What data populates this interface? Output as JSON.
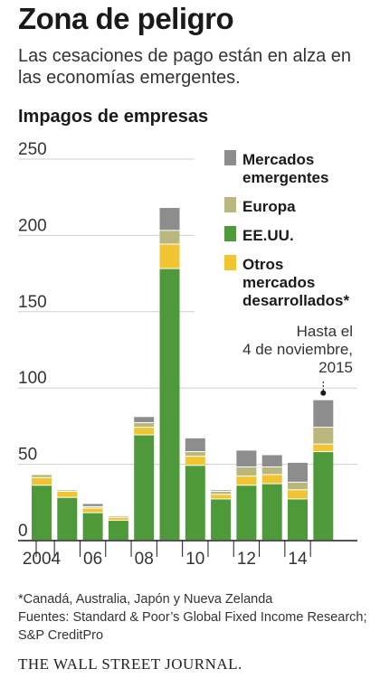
{
  "header": {
    "title": "Zona de peligro",
    "subtitle": "Las cesaciones de pago están en alza en las economías emergentes."
  },
  "chart_data": {
    "type": "bar",
    "stacked": true,
    "title": "Impagos de empresas",
    "categories": [
      "2004",
      "2005",
      "2006",
      "2007",
      "2008",
      "2009",
      "2010",
      "2011",
      "2012",
      "2013",
      "2014",
      "2015"
    ],
    "x_tick_labels": {
      "2004": "2004",
      "2006": "06",
      "2008": "08",
      "2010": "10",
      "2012": "12",
      "2014": "14"
    },
    "ylim": [
      0,
      250
    ],
    "yticks": [
      0,
      50,
      100,
      150,
      200,
      250
    ],
    "grid": true,
    "legend_position": "top-right",
    "series": [
      {
        "name": "EE.UU.",
        "color": "#4e9a3a",
        "values": [
          36,
          28,
          18,
          13,
          69,
          178,
          49,
          27,
          36,
          37,
          27,
          58
        ]
      },
      {
        "name": "Otros mercados desarrollados*",
        "color": "#f0c531",
        "values": [
          5,
          4,
          3,
          2,
          5,
          16,
          6,
          3,
          6,
          6,
          6,
          5
        ]
      },
      {
        "name": "Europa",
        "color": "#b9b77e",
        "values": [
          2,
          1,
          1,
          1,
          3,
          9,
          3,
          2,
          6,
          5,
          5,
          11
        ]
      },
      {
        "name": "Mercados emergentes",
        "color": "#8d8d8d",
        "values": [
          0,
          0,
          2,
          0,
          4,
          15,
          9,
          1,
          11,
          8,
          13,
          18
        ]
      }
    ],
    "legend_order": [
      "Mercados emergentes",
      "Europa",
      "EE.UU.",
      "Otros mercados desarrollados*"
    ],
    "annotation": {
      "lines": [
        "Hasta el",
        "4 de noviembre,",
        "2015"
      ],
      "category": "2015"
    }
  },
  "footer": {
    "note": "*Canadá, Australia, Japón y Nueva Zelanda",
    "sources": "Fuentes: Standard & Poor’s Global Fixed Income Research; S&P CreditPro",
    "publisher": "THE WALL STREET JOURNAL."
  }
}
